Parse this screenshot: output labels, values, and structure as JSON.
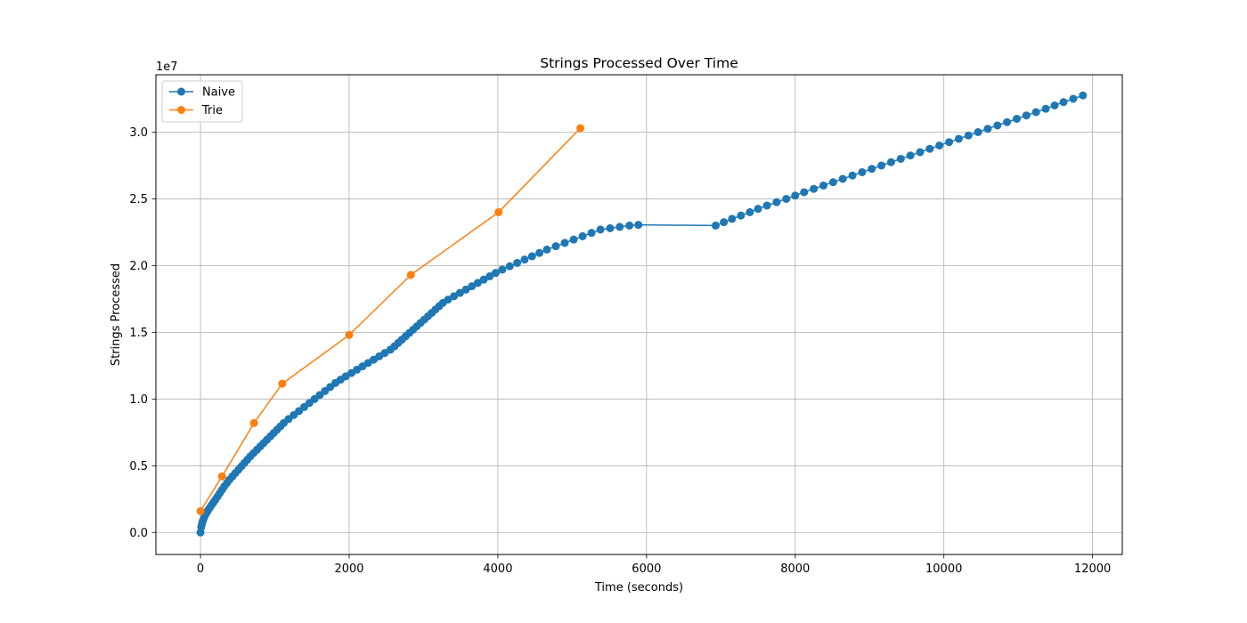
{
  "chart_data": {
    "type": "line",
    "title": "Strings Processed Over Time",
    "xlabel": "Time (seconds)",
    "ylabel": "Strings Processed",
    "y_offset_label": "1e7",
    "y_scale": 10000000,
    "xlim": [
      -600,
      12400
    ],
    "ylim": [
      -1650000,
      34300000
    ],
    "xticks": [
      0,
      2000,
      4000,
      6000,
      8000,
      10000,
      12000
    ],
    "xtick_labels": [
      "0",
      "2000",
      "4000",
      "6000",
      "8000",
      "10000",
      "12000"
    ],
    "yticks": [
      0,
      5000000,
      10000000,
      15000000,
      20000000,
      25000000,
      30000000
    ],
    "ytick_labels": [
      "0.0",
      "0.5",
      "1.0",
      "1.5",
      "2.0",
      "2.5",
      "3.0"
    ],
    "grid": true,
    "legend_position": "upper-left",
    "series": [
      {
        "name": "Naive",
        "color": "#1f77b4",
        "marker": "circle",
        "x": [
          0,
          10,
          20,
          30,
          45,
          60,
          80,
          100,
          125,
          150,
          175,
          200,
          230,
          260,
          290,
          320,
          355,
          390,
          430,
          470,
          510,
          550,
          590,
          630,
          670,
          715,
          760,
          805,
          850,
          895,
          940,
          985,
          1030,
          1075,
          1120,
          1185,
          1255,
          1325,
          1395,
          1465,
          1535,
          1605,
          1675,
          1745,
          1815,
          1885,
          1955,
          2030,
          2105,
          2180,
          2255,
          2330,
          2405,
          2480,
          2555,
          2610,
          2660,
          2710,
          2760,
          2810,
          2860,
          2910,
          2960,
          3010,
          3060,
          3110,
          3160,
          3210,
          3260,
          3330,
          3410,
          3490,
          3570,
          3650,
          3730,
          3810,
          3890,
          3970,
          4060,
          4160,
          4260,
          4360,
          4460,
          4560,
          4660,
          4780,
          4900,
          5020,
          5140,
          5260,
          5380,
          5510,
          5640,
          5770,
          5890,
          6930,
          7040,
          7150,
          7270,
          7390,
          7500,
          7620,
          7750,
          7880,
          8000,
          8120,
          8250,
          8380,
          8510,
          8640,
          8770,
          8900,
          9030,
          9160,
          9290,
          9420,
          9550,
          9680,
          9810,
          9940,
          10070,
          10200,
          10330,
          10460,
          10590,
          10720,
          10850,
          10980,
          11110,
          11240,
          11370,
          11490,
          11610,
          11740,
          11870
        ],
        "y": [
          0,
          400000,
          650000,
          850000,
          1050000,
          1250000,
          1450000,
          1650000,
          1850000,
          2050000,
          2250000,
          2450000,
          2700000,
          2950000,
          3200000,
          3450000,
          3700000,
          3950000,
          4200000,
          4450000,
          4700000,
          4950000,
          5200000,
          5450000,
          5700000,
          5950000,
          6200000,
          6450000,
          6700000,
          6950000,
          7200000,
          7450000,
          7700000,
          7950000,
          8200000,
          8500000,
          8800000,
          9100000,
          9400000,
          9700000,
          10000000,
          10300000,
          10600000,
          10900000,
          11200000,
          11450000,
          11700000,
          11950000,
          12200000,
          12450000,
          12700000,
          12950000,
          13200000,
          13450000,
          13700000,
          13950000,
          14200000,
          14450000,
          14700000,
          14950000,
          15200000,
          15450000,
          15700000,
          15950000,
          16200000,
          16450000,
          16700000,
          16950000,
          17200000,
          17450000,
          17700000,
          17950000,
          18200000,
          18450000,
          18700000,
          18950000,
          19200000,
          19450000,
          19700000,
          19950000,
          20200000,
          20450000,
          20700000,
          20950000,
          21200000,
          21450000,
          21700000,
          21950000,
          22200000,
          22450000,
          22700000,
          22800000,
          22900000,
          23000000,
          23050000,
          23000000,
          23250000,
          23500000,
          23750000,
          24000000,
          24250000,
          24500000,
          24750000,
          25000000,
          25250000,
          25500000,
          25750000,
          26000000,
          26250000,
          26500000,
          26750000,
          27000000,
          27250000,
          27500000,
          27750000,
          28000000,
          28250000,
          28500000,
          28750000,
          29000000,
          29250000,
          29500000,
          29750000,
          30000000,
          30250000,
          30500000,
          30750000,
          31000000,
          31250000,
          31500000,
          31750000,
          32000000,
          32250000,
          32500000,
          32750000
        ]
      },
      {
        "name": "Trie",
        "color": "#ff7f0e",
        "marker": "circle",
        "x": [
          0,
          290,
          720,
          1100,
          2000,
          2830,
          4010,
          5110
        ],
        "y": [
          1600000,
          4200000,
          8200000,
          11150000,
          14800000,
          19300000,
          24000000,
          30300000
        ]
      }
    ]
  }
}
